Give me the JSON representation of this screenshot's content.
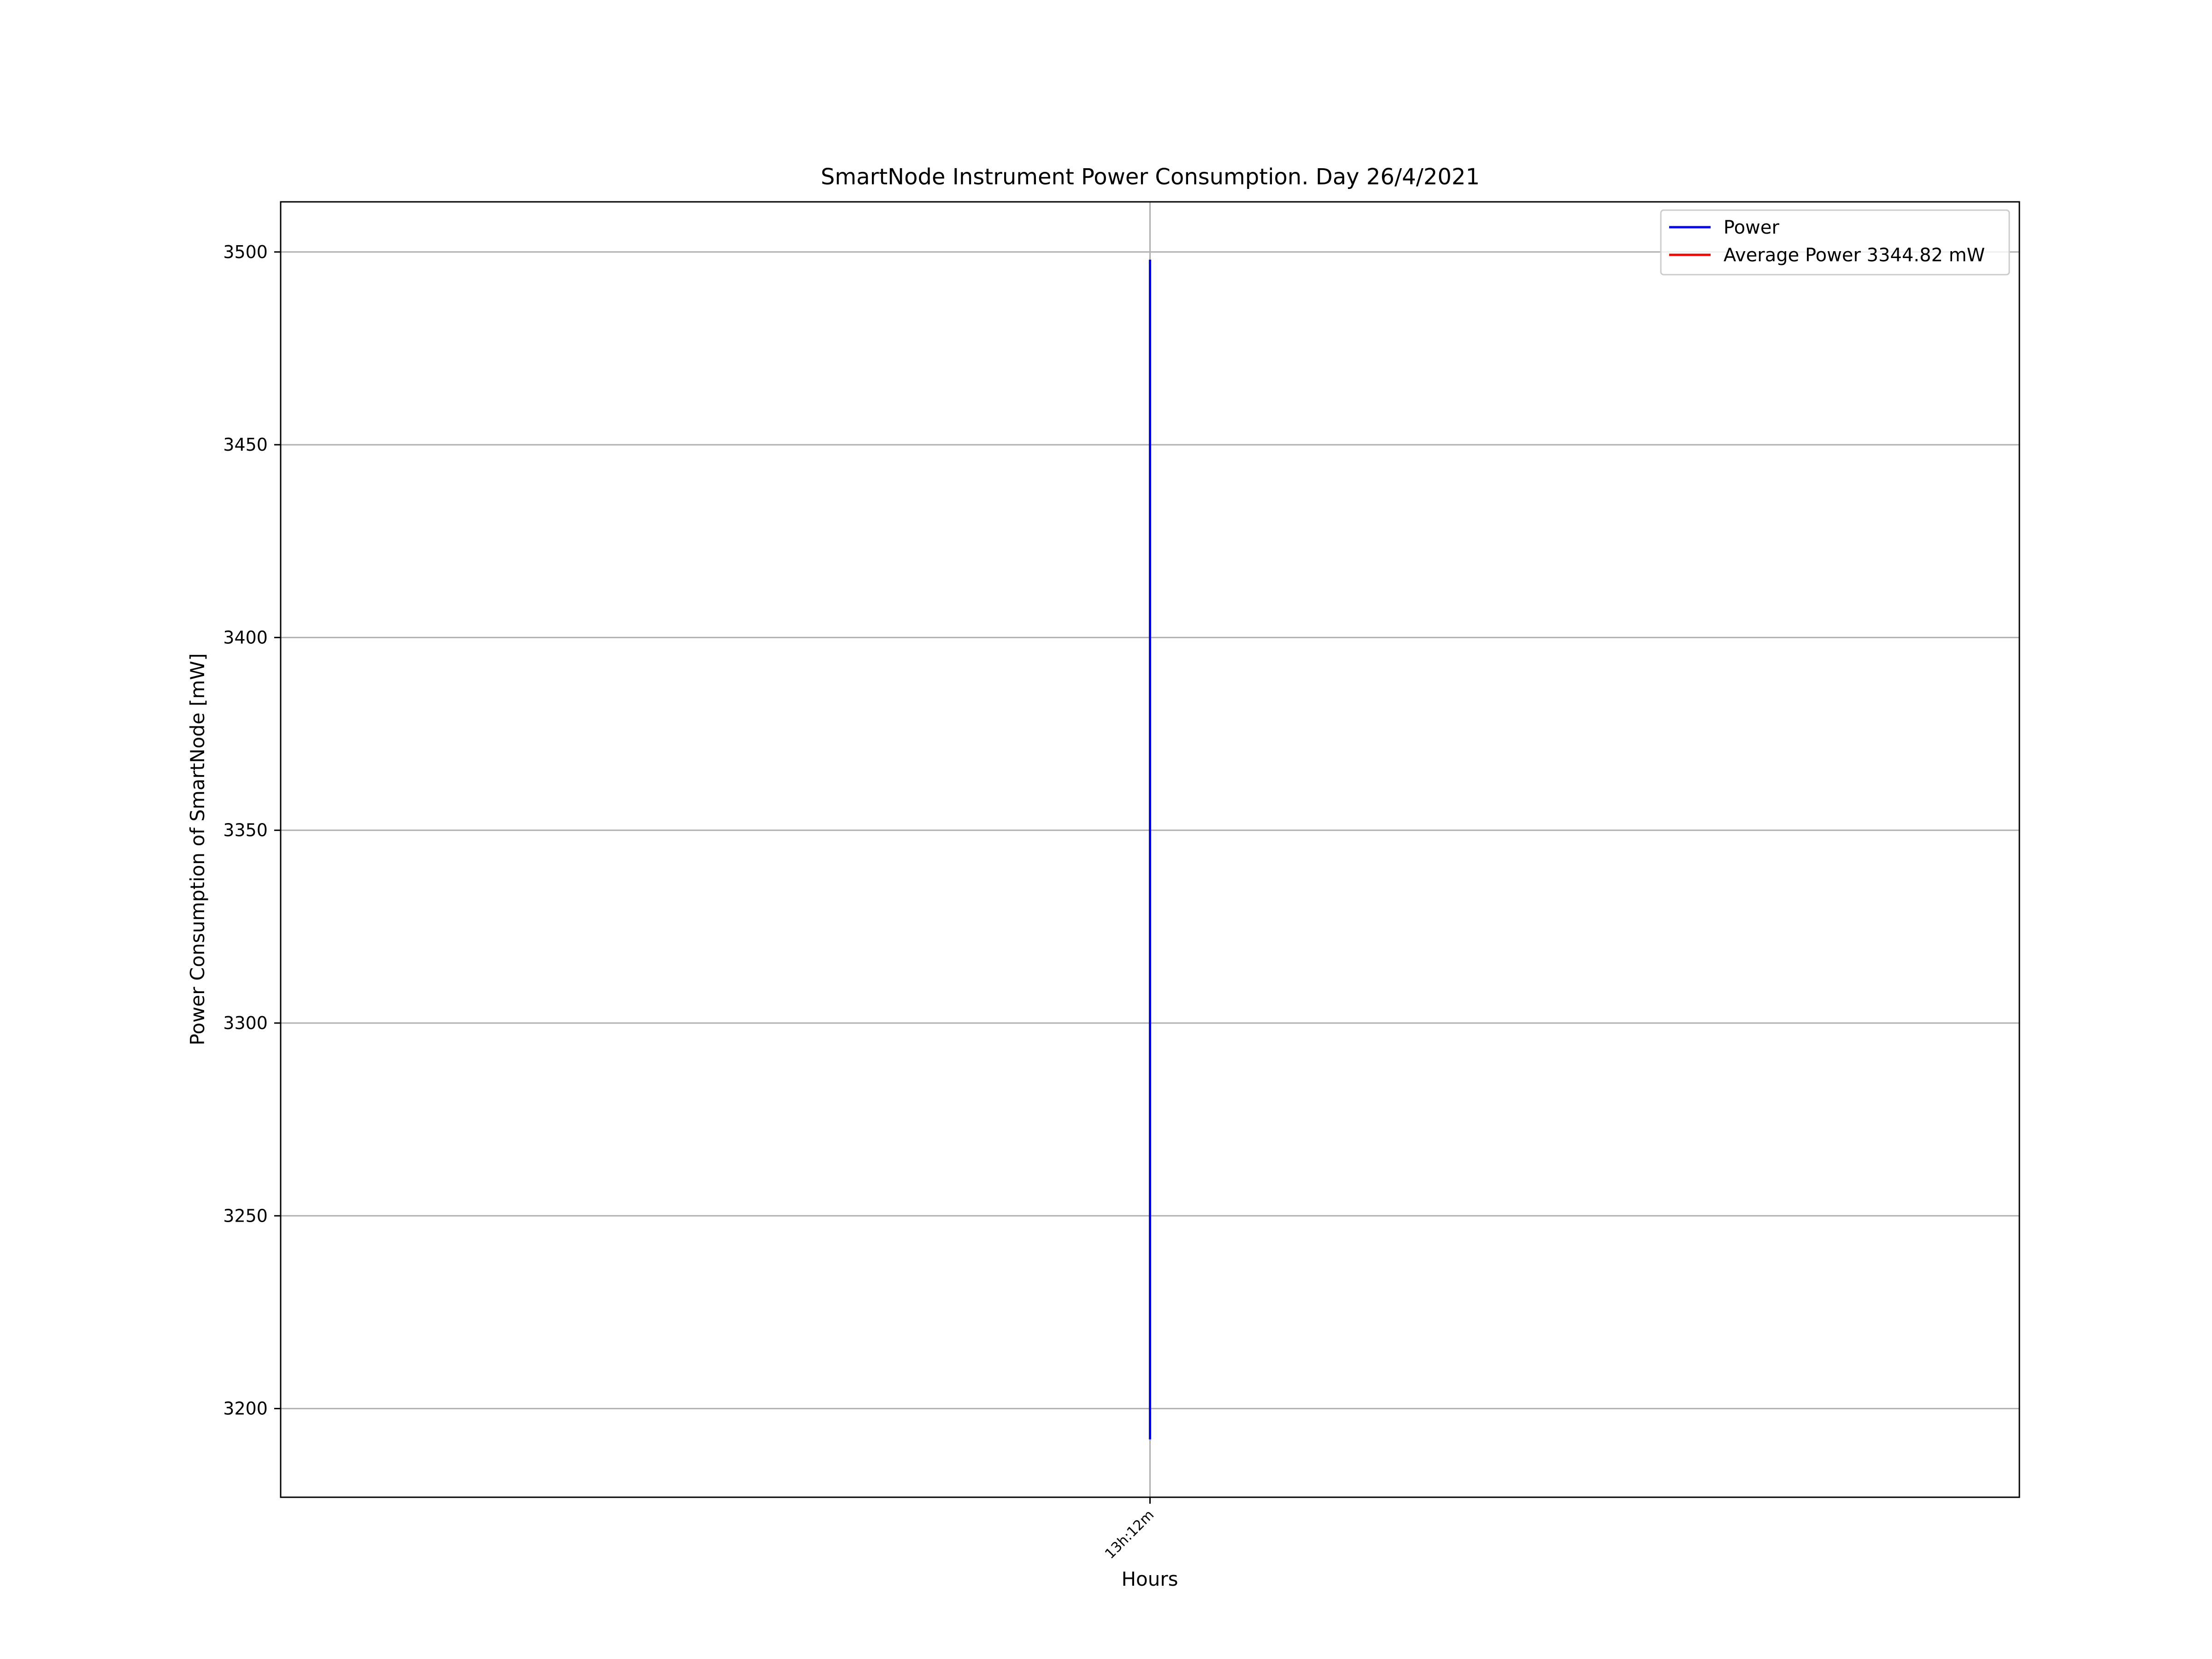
{
  "chart_data": {
    "type": "line",
    "title": "SmartNode Instrument Power Consumption. Day 26/4/2021",
    "xlabel": "Hours",
    "ylabel": "Power Consumption of SmartNode [mW]",
    "x_ticks": [
      "13h:12m"
    ],
    "y_ticks": [
      3200,
      3250,
      3300,
      3350,
      3400,
      3450,
      3500
    ],
    "ylim": [
      3177,
      3513
    ],
    "grid": true,
    "legend_position": "top-right",
    "series": [
      {
        "name": "Power",
        "color": "#0000ff",
        "x": [
          "13h:12m",
          "13h:12m"
        ],
        "y": [
          3192,
          3498
        ]
      },
      {
        "name": "Average Power 3344.82 mW",
        "color": "#ff0000",
        "x": [],
        "y": []
      }
    ]
  }
}
